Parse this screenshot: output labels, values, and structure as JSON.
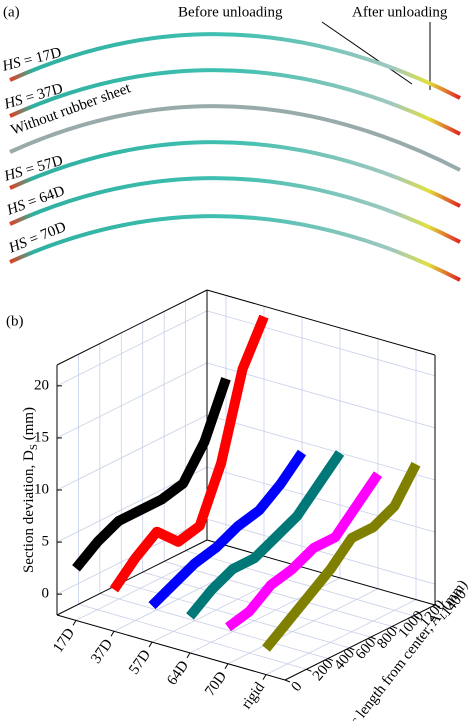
{
  "panel_a": {
    "label": "(a)",
    "annotations": [
      "Before unloading",
      "After unloading"
    ],
    "curves": [
      {
        "prefix": "HS",
        "rest": " = 17D"
      },
      {
        "prefix": "HS",
        "rest": " = 37D"
      },
      {
        "prefix": "",
        "rest": "Without rubber sheet"
      },
      {
        "prefix": "HS",
        "rest": " = 57D"
      },
      {
        "prefix": "HS",
        "rest": " = 64D"
      },
      {
        "prefix": "HS",
        "rest": " = 70D"
      }
    ]
  },
  "chart_data": {
    "type": "ribbon3d",
    "label": "(b)",
    "zlabel": "Section deviation, D",
    "zlabel_sub": "S",
    "zlabel_unit": " (mm)",
    "xlabel": "Arc length from center, A",
    "xlabel_sub": "L",
    "xlabel_unit": " (mm)",
    "categories": [
      "17D",
      "37D",
      "57D",
      "64D",
      "70D",
      "rigid"
    ],
    "x": [
      0,
      200,
      400,
      600,
      800,
      1000,
      1200,
      1400
    ],
    "xlim": [
      0,
      1400
    ],
    "xticks": [
      0,
      200,
      400,
      600,
      800,
      1000,
      1200,
      1400
    ],
    "zlim": [
      -2,
      22
    ],
    "zticks": [
      0,
      5,
      10,
      15,
      20
    ],
    "grid": true,
    "series": [
      {
        "name": "17D",
        "color": "#000000",
        "values": [
          3,
          4.5,
          5.5,
          5.5,
          5.5,
          6,
          9,
          14
        ]
      },
      {
        "name": "37D",
        "color": "#ff0000",
        "values": [
          2,
          4,
          5.5,
          3.5,
          4,
          9,
          17,
          21
        ]
      },
      {
        "name": "57D",
        "color": "#0000ff",
        "values": [
          1.5,
          2.5,
          3.5,
          4,
          5,
          5.5,
          7,
          9
        ]
      },
      {
        "name": "64D",
        "color": "#007878",
        "values": [
          1.5,
          3,
          4,
          4,
          5,
          6,
          8,
          10
        ]
      },
      {
        "name": "70D",
        "color": "#ff00ff",
        "values": [
          1.5,
          2,
          3.5,
          4,
          5,
          5,
          7,
          9
        ]
      },
      {
        "name": "rigid",
        "color": "#808000",
        "values": [
          0.5,
          2,
          3.5,
          5,
          7,
          7,
          8,
          11
        ]
      }
    ]
  }
}
